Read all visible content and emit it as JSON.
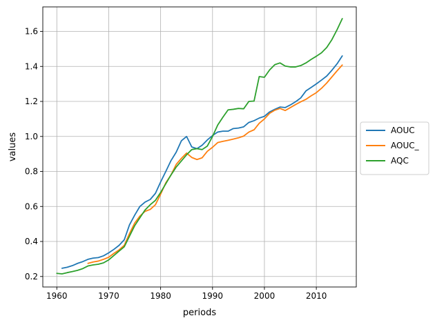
{
  "chart_data": {
    "type": "line",
    "title": "",
    "xlabel": "periods",
    "ylabel": "values",
    "xlim": [
      1957.3,
      2017.7
    ],
    "ylim": [
      0.14,
      1.74
    ],
    "xticks": [
      1960,
      1970,
      1980,
      1990,
      2000,
      2010
    ],
    "yticks": [
      0.2,
      0.4,
      0.6,
      0.8,
      1.0,
      1.2,
      1.4,
      1.6
    ],
    "ytick_labels": [
      "0.2",
      "0.4",
      "0.6",
      "0.8",
      "1.0",
      "1.2",
      "1.4",
      "1.6"
    ],
    "grid": true,
    "legend_placement": "center-right-outside",
    "series": [
      {
        "name": "AOUC",
        "color": "#1f77b4",
        "x": [
          1961,
          1962,
          1963,
          1964,
          1965,
          1966,
          1967,
          1968,
          1969,
          1970,
          1971,
          1972,
          1973,
          1974,
          1975,
          1976,
          1977,
          1978,
          1979,
          1980,
          1981,
          1982,
          1983,
          1984,
          1985,
          1986,
          1987,
          1988,
          1989,
          1990,
          1991,
          1992,
          1993,
          1994,
          1995,
          1996,
          1997,
          1998,
          1999,
          2000,
          2001,
          2002,
          2003,
          2004,
          2005,
          2006,
          2007,
          2008,
          2009,
          2010,
          2011,
          2012,
          2013,
          2014,
          2015
        ],
        "values": [
          0.247,
          0.253,
          0.262,
          0.275,
          0.285,
          0.298,
          0.305,
          0.308,
          0.318,
          0.335,
          0.355,
          0.378,
          0.41,
          0.495,
          0.55,
          0.6,
          0.625,
          0.64,
          0.675,
          0.74,
          0.8,
          0.862,
          0.91,
          0.975,
          1.0,
          0.94,
          0.93,
          0.95,
          0.98,
          1.005,
          1.025,
          1.03,
          1.03,
          1.045,
          1.048,
          1.055,
          1.08,
          1.09,
          1.105,
          1.115,
          1.14,
          1.155,
          1.168,
          1.165,
          1.18,
          1.198,
          1.22,
          1.26,
          1.28,
          1.3,
          1.322,
          1.345,
          1.378,
          1.415,
          1.46
        ]
      },
      {
        "name": "AOUC_",
        "color": "#ff7f0e",
        "x": [
          1966,
          1967,
          1968,
          1969,
          1970,
          1971,
          1972,
          1973,
          1974,
          1975,
          1976,
          1977,
          1978,
          1979,
          1980,
          1981,
          1982,
          1983,
          1984,
          1985,
          1986,
          1987,
          1988,
          1989,
          1990,
          1991,
          1992,
          1993,
          1994,
          1995,
          1996,
          1997,
          1998,
          1999,
          2000,
          2001,
          2002,
          2003,
          2004,
          2005,
          2006,
          2007,
          2008,
          2009,
          2010,
          2011,
          2012,
          2013,
          2014,
          2015
        ],
        "values": [
          0.275,
          0.283,
          0.288,
          0.298,
          0.31,
          0.332,
          0.352,
          0.378,
          0.445,
          0.505,
          0.545,
          0.572,
          0.583,
          0.61,
          0.67,
          0.735,
          0.78,
          0.84,
          0.875,
          0.905,
          0.88,
          0.868,
          0.878,
          0.915,
          0.938,
          0.965,
          0.972,
          0.978,
          0.985,
          0.992,
          1.002,
          1.025,
          1.038,
          1.075,
          1.1,
          1.132,
          1.15,
          1.16,
          1.148,
          1.165,
          1.182,
          1.198,
          1.212,
          1.232,
          1.25,
          1.275,
          1.305,
          1.34,
          1.375,
          1.408
        ]
      },
      {
        "name": "AQC",
        "color": "#2ca02c",
        "x": [
          1960,
          1961,
          1962,
          1963,
          1964,
          1965,
          1966,
          1967,
          1968,
          1969,
          1970,
          1971,
          1972,
          1973,
          1974,
          1975,
          1976,
          1977,
          1978,
          1979,
          1980,
          1981,
          1982,
          1983,
          1984,
          1985,
          1986,
          1987,
          1988,
          1989,
          1990,
          1991,
          1992,
          1993,
          1994,
          1995,
          1996,
          1997,
          1998,
          1999,
          2000,
          2001,
          2002,
          2003,
          2004,
          2005,
          2006,
          2007,
          2008,
          2009,
          2010,
          2011,
          2012,
          2013,
          2014,
          2015
        ],
        "values": [
          0.218,
          0.215,
          0.222,
          0.228,
          0.235,
          0.245,
          0.26,
          0.266,
          0.27,
          0.278,
          0.295,
          0.32,
          0.345,
          0.37,
          0.43,
          0.49,
          0.535,
          0.58,
          0.61,
          0.635,
          0.68,
          0.73,
          0.78,
          0.825,
          0.86,
          0.895,
          0.925,
          0.93,
          0.925,
          0.945,
          1.0,
          1.065,
          1.11,
          1.152,
          1.155,
          1.16,
          1.158,
          1.2,
          1.202,
          1.342,
          1.338,
          1.38,
          1.41,
          1.42,
          1.402,
          1.397,
          1.397,
          1.405,
          1.42,
          1.44,
          1.458,
          1.478,
          1.508,
          1.553,
          1.61,
          1.673
        ]
      }
    ]
  }
}
